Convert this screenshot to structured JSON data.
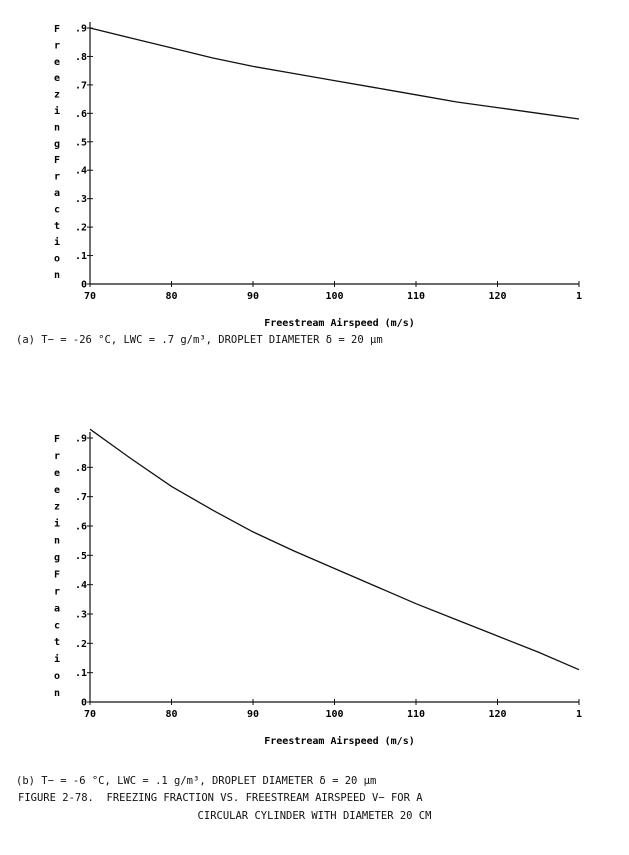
{
  "chart_data": [
    {
      "type": "line",
      "xlabel": "Freestream Airspeed (m/s)",
      "ylabel_letters": [
        "F",
        "r",
        "e",
        "e",
        "z",
        "i",
        "n",
        "g",
        "F",
        "r",
        "a",
        "c",
        "t",
        "i",
        "o",
        "n"
      ],
      "yticks": [
        "0",
        ".1",
        ".2",
        ".3",
        ".4",
        ".5",
        ".6",
        ".7",
        ".8",
        ".9"
      ],
      "xticks": [
        "70",
        "80",
        "90",
        "100",
        "110",
        "120",
        "1"
      ],
      "xlim": [
        70,
        130
      ],
      "ylim": [
        0,
        0.9
      ],
      "x": [
        70,
        75,
        80,
        85,
        90,
        95,
        100,
        105,
        110,
        115,
        120,
        125,
        130
      ],
      "y": [
        0.9,
        0.865,
        0.83,
        0.795,
        0.765,
        0.74,
        0.715,
        0.69,
        0.665,
        0.64,
        0.62,
        0.6,
        0.58
      ],
      "caption": "(a) T− = -26 °C, LWC = .7 g/m³, DROPLET DIAMETER δ = 20 μm"
    },
    {
      "type": "line",
      "xlabel": "Freestream Airspeed (m/s)",
      "ylabel_letters": [
        "F",
        "r",
        "e",
        "e",
        "z",
        "i",
        "n",
        "g",
        "F",
        "r",
        "a",
        "c",
        "t",
        "i",
        "o",
        "n"
      ],
      "yticks": [
        "0",
        ".1",
        ".2",
        ".3",
        ".4",
        ".5",
        ".6",
        ".7",
        ".8",
        ".9"
      ],
      "xticks": [
        "70",
        "80",
        "90",
        "100",
        "110",
        "120",
        "1"
      ],
      "xlim": [
        70,
        130
      ],
      "ylim": [
        0,
        0.9
      ],
      "x": [
        70,
        75,
        80,
        85,
        90,
        95,
        100,
        105,
        110,
        115,
        120,
        125,
        130
      ],
      "y": [
        0.93,
        0.83,
        0.735,
        0.655,
        0.58,
        0.515,
        0.455,
        0.395,
        0.335,
        0.28,
        0.225,
        0.17,
        0.11
      ],
      "caption": "(b) T− = -6 °C, LWC = .1 g/m³, DROPLET DIAMETER δ = 20 μm"
    }
  ],
  "figure": {
    "title_line1": "FIGURE 2-78.  FREEZING FRACTION VS. FREESTREAM AIRSPEED V− FOR A",
    "title_line2": "CIRCULAR CYLINDER WITH DIAMETER 20 CM"
  }
}
